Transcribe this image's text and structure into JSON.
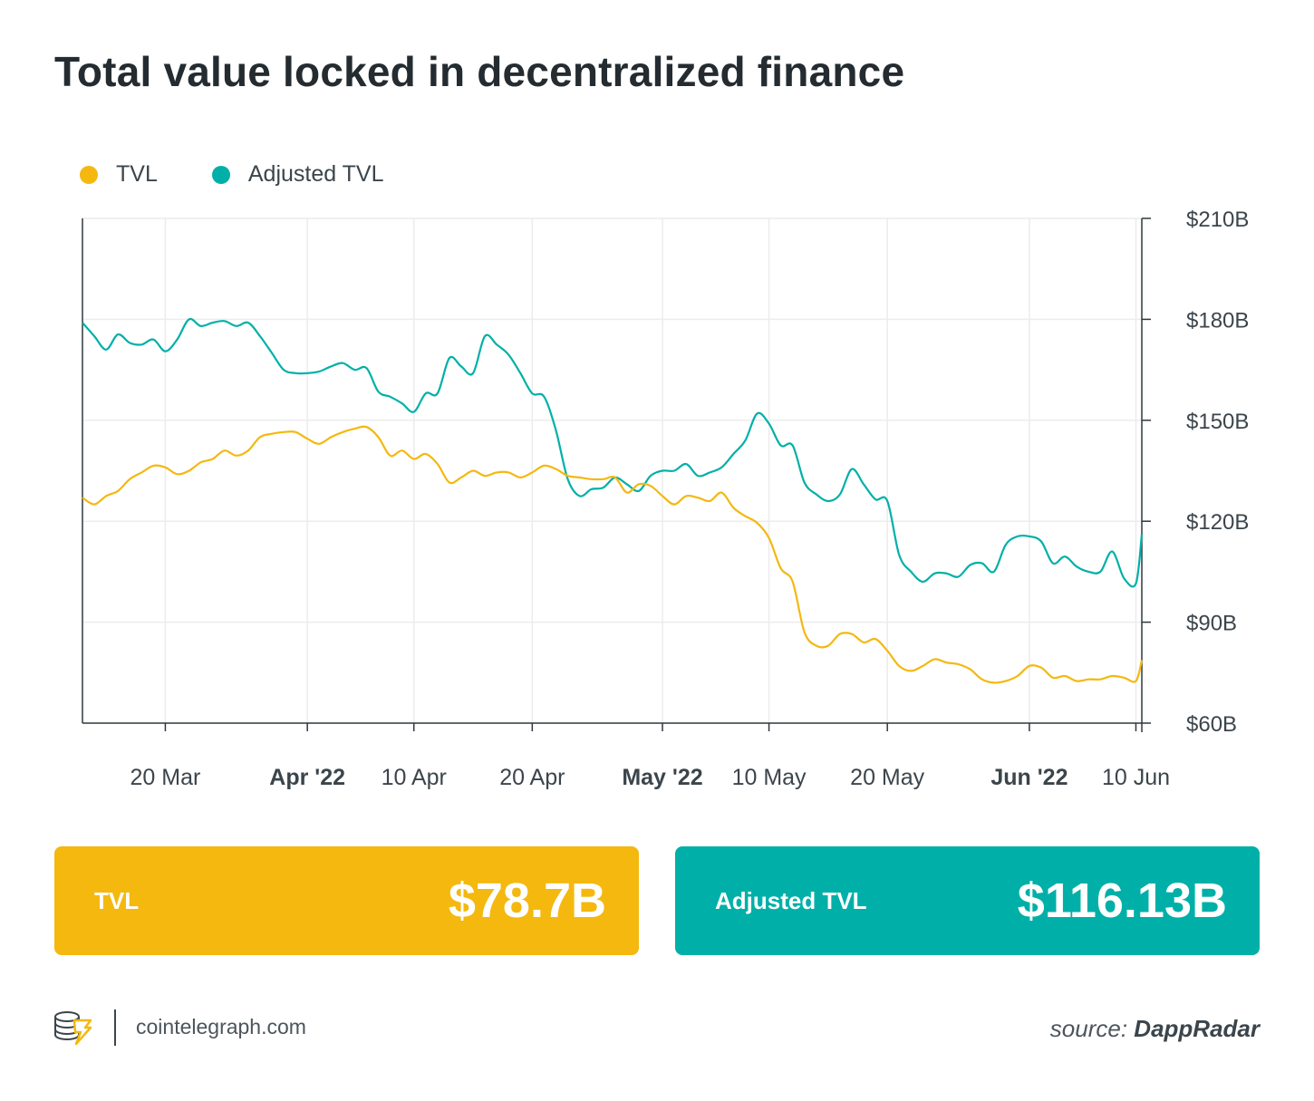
{
  "title": "Total value locked in decentralized finance",
  "legend": [
    {
      "label": "TVL",
      "color": "#f4b80f"
    },
    {
      "label": "Adjusted TVL",
      "color": "#00b0a8"
    }
  ],
  "cards": {
    "tvl": {
      "label": "TVL",
      "value": "$78.7B",
      "color": "#f4b80f"
    },
    "adjusted": {
      "label": "Adjusted TVL",
      "value": "$116.13B",
      "color": "#00b0a8"
    }
  },
  "footer": {
    "site": "cointelegraph.com",
    "source_prefix": "source:",
    "source_name": "DappRadar",
    "logo_icon": "cointelegraph-coin-icon"
  },
  "chart_data": {
    "type": "line",
    "x_start": "2022-03-13",
    "x_end": "2022-06-10",
    "ylim": [
      60,
      210
    ],
    "y_unit": "billion USD",
    "y_ticks": [
      {
        "value": 60,
        "label": "$60B"
      },
      {
        "value": 90,
        "label": "$90B"
      },
      {
        "value": 120,
        "label": "$120B"
      },
      {
        "value": 150,
        "label": "$150B"
      },
      {
        "value": 180,
        "label": "$180B"
      },
      {
        "value": 210,
        "label": "$210B"
      }
    ],
    "x_ticks": [
      {
        "date": "2022-03-20",
        "label": "20 Mar",
        "bold": false
      },
      {
        "date": "2022-04-01",
        "label": "Apr '22",
        "bold": true
      },
      {
        "date": "2022-04-10",
        "label": "10 Apr",
        "bold": false
      },
      {
        "date": "2022-04-20",
        "label": "20 Apr",
        "bold": false
      },
      {
        "date": "2022-05-01",
        "label": "May '22",
        "bold": true
      },
      {
        "date": "2022-05-10",
        "label": "10 May",
        "bold": false
      },
      {
        "date": "2022-05-20",
        "label": "20 May",
        "bold": false
      },
      {
        "date": "2022-06-01",
        "label": "Jun '22",
        "bold": true
      },
      {
        "date": "2022-06-10",
        "label": "10 Jun",
        "bold": false
      }
    ],
    "grid": true,
    "legend_position": "top-left",
    "series": [
      {
        "name": "TVL",
        "color": "#f4b80f",
        "points": [
          [
            "2022-03-13",
            127
          ],
          [
            "2022-03-14",
            125
          ],
          [
            "2022-03-15",
            127.5
          ],
          [
            "2022-03-16",
            129
          ],
          [
            "2022-03-17",
            132.5
          ],
          [
            "2022-03-18",
            134.5
          ],
          [
            "2022-03-19",
            136.5
          ],
          [
            "2022-03-20",
            136
          ],
          [
            "2022-03-21",
            134
          ],
          [
            "2022-03-22",
            135
          ],
          [
            "2022-03-23",
            137.5
          ],
          [
            "2022-03-24",
            138.5
          ],
          [
            "2022-03-25",
            141
          ],
          [
            "2022-03-26",
            139.5
          ],
          [
            "2022-03-27",
            141
          ],
          [
            "2022-03-28",
            145
          ],
          [
            "2022-03-29",
            146
          ],
          [
            "2022-03-30",
            146.5
          ],
          [
            "2022-03-31",
            146.5
          ],
          [
            "2022-04-01",
            144.5
          ],
          [
            "2022-04-02",
            143
          ],
          [
            "2022-04-03",
            145
          ],
          [
            "2022-04-04",
            146.5
          ],
          [
            "2022-04-05",
            147.5
          ],
          [
            "2022-04-06",
            148
          ],
          [
            "2022-04-07",
            145
          ],
          [
            "2022-04-08",
            139.5
          ],
          [
            "2022-04-09",
            141
          ],
          [
            "2022-04-10",
            138.5
          ],
          [
            "2022-04-11",
            140
          ],
          [
            "2022-04-12",
            137
          ],
          [
            "2022-04-13",
            131.5
          ],
          [
            "2022-04-14",
            133
          ],
          [
            "2022-04-15",
            135
          ],
          [
            "2022-04-16",
            133.5
          ],
          [
            "2022-04-17",
            134.5
          ],
          [
            "2022-04-18",
            134.5
          ],
          [
            "2022-04-19",
            133
          ],
          [
            "2022-04-20",
            134.5
          ],
          [
            "2022-04-21",
            136.5
          ],
          [
            "2022-04-22",
            135.5
          ],
          [
            "2022-04-23",
            133.5
          ],
          [
            "2022-04-24",
            133
          ],
          [
            "2022-04-25",
            132.5
          ],
          [
            "2022-04-26",
            132.5
          ],
          [
            "2022-04-27",
            133
          ],
          [
            "2022-04-28",
            128.5
          ],
          [
            "2022-04-29",
            131
          ],
          [
            "2022-04-30",
            130.5
          ],
          [
            "2022-05-01",
            127.5
          ],
          [
            "2022-05-02",
            125
          ],
          [
            "2022-05-03",
            127.5
          ],
          [
            "2022-05-04",
            127
          ],
          [
            "2022-05-05",
            126
          ],
          [
            "2022-05-06",
            128.5
          ],
          [
            "2022-05-07",
            124
          ],
          [
            "2022-05-08",
            121.5
          ],
          [
            "2022-05-09",
            119.5
          ],
          [
            "2022-05-10",
            115
          ],
          [
            "2022-05-11",
            106
          ],
          [
            "2022-05-12",
            102
          ],
          [
            "2022-05-13",
            87
          ],
          [
            "2022-05-14",
            83
          ],
          [
            "2022-05-15",
            83
          ],
          [
            "2022-05-16",
            86.5
          ],
          [
            "2022-05-17",
            86.5
          ],
          [
            "2022-05-18",
            84
          ],
          [
            "2022-05-19",
            85
          ],
          [
            "2022-05-20",
            81.5
          ],
          [
            "2022-05-21",
            77
          ],
          [
            "2022-05-22",
            75.5
          ],
          [
            "2022-05-23",
            77
          ],
          [
            "2022-05-24",
            79
          ],
          [
            "2022-05-25",
            78
          ],
          [
            "2022-05-26",
            77.5
          ],
          [
            "2022-05-27",
            76
          ],
          [
            "2022-05-28",
            73
          ],
          [
            "2022-05-29",
            72
          ],
          [
            "2022-05-30",
            72.5
          ],
          [
            "2022-05-31",
            74
          ],
          [
            "2022-06-01",
            77
          ],
          [
            "2022-06-02",
            76.5
          ],
          [
            "2022-06-03",
            73.5
          ],
          [
            "2022-06-04",
            74
          ],
          [
            "2022-06-05",
            72.5
          ],
          [
            "2022-06-06",
            73
          ],
          [
            "2022-06-07",
            73
          ],
          [
            "2022-06-08",
            74
          ],
          [
            "2022-06-09",
            73.5
          ],
          [
            "2022-06-10",
            72.5
          ],
          [
            "2022-06-10T12",
            78.7
          ]
        ]
      },
      {
        "name": "Adjusted TVL",
        "color": "#00b0a8",
        "points": [
          [
            "2022-03-13",
            179
          ],
          [
            "2022-03-14",
            175
          ],
          [
            "2022-03-15",
            171
          ],
          [
            "2022-03-16",
            175.5
          ],
          [
            "2022-03-17",
            173
          ],
          [
            "2022-03-18",
            172.5
          ],
          [
            "2022-03-19",
            174
          ],
          [
            "2022-03-20",
            170.5
          ],
          [
            "2022-03-21",
            174
          ],
          [
            "2022-03-22",
            180
          ],
          [
            "2022-03-23",
            178
          ],
          [
            "2022-03-24",
            179
          ],
          [
            "2022-03-25",
            179.5
          ],
          [
            "2022-03-26",
            178
          ],
          [
            "2022-03-27",
            179
          ],
          [
            "2022-03-28",
            175
          ],
          [
            "2022-03-29",
            170
          ],
          [
            "2022-03-30",
            165
          ],
          [
            "2022-03-31",
            164
          ],
          [
            "2022-04-01",
            164
          ],
          [
            "2022-04-02",
            164.5
          ],
          [
            "2022-04-03",
            166
          ],
          [
            "2022-04-04",
            167
          ],
          [
            "2022-04-05",
            165
          ],
          [
            "2022-04-06",
            165.5
          ],
          [
            "2022-04-07",
            158.5
          ],
          [
            "2022-04-08",
            157
          ],
          [
            "2022-04-09",
            155
          ],
          [
            "2022-04-10",
            152.5
          ],
          [
            "2022-04-11",
            158
          ],
          [
            "2022-04-12",
            158
          ],
          [
            "2022-04-13",
            168.5
          ],
          [
            "2022-04-14",
            166
          ],
          [
            "2022-04-15",
            164
          ],
          [
            "2022-04-16",
            175
          ],
          [
            "2022-04-17",
            172.5
          ],
          [
            "2022-04-18",
            169.5
          ],
          [
            "2022-04-19",
            164
          ],
          [
            "2022-04-20",
            158
          ],
          [
            "2022-04-21",
            157
          ],
          [
            "2022-04-22",
            147
          ],
          [
            "2022-04-23",
            132.5
          ],
          [
            "2022-04-24",
            127.5
          ],
          [
            "2022-04-25",
            129.5
          ],
          [
            "2022-04-26",
            130
          ],
          [
            "2022-04-27",
            133
          ],
          [
            "2022-04-28",
            131
          ],
          [
            "2022-04-29",
            129
          ],
          [
            "2022-04-30",
            133.5
          ],
          [
            "2022-05-01",
            135
          ],
          [
            "2022-05-02",
            135
          ],
          [
            "2022-05-03",
            137
          ],
          [
            "2022-05-04",
            133.5
          ],
          [
            "2022-05-05",
            134.5
          ],
          [
            "2022-05-06",
            136
          ],
          [
            "2022-05-07",
            140
          ],
          [
            "2022-05-08",
            144
          ],
          [
            "2022-05-09",
            152
          ],
          [
            "2022-05-10",
            149
          ],
          [
            "2022-05-11",
            142.5
          ],
          [
            "2022-05-12",
            142.5
          ],
          [
            "2022-05-13",
            131.5
          ],
          [
            "2022-05-14",
            128
          ],
          [
            "2022-05-15",
            126
          ],
          [
            "2022-05-16",
            128
          ],
          [
            "2022-05-17",
            135.5
          ],
          [
            "2022-05-18",
            131
          ],
          [
            "2022-05-19",
            126.5
          ],
          [
            "2022-05-20",
            126
          ],
          [
            "2022-05-21",
            110
          ],
          [
            "2022-05-22",
            105
          ],
          [
            "2022-05-23",
            102
          ],
          [
            "2022-05-24",
            104.5
          ],
          [
            "2022-05-25",
            104.5
          ],
          [
            "2022-05-26",
            103.5
          ],
          [
            "2022-05-27",
            107
          ],
          [
            "2022-05-28",
            107.5
          ],
          [
            "2022-05-29",
            105
          ],
          [
            "2022-05-30",
            113
          ],
          [
            "2022-05-31",
            115.5
          ],
          [
            "2022-06-01",
            115.5
          ],
          [
            "2022-06-02",
            114
          ],
          [
            "2022-06-03",
            107.5
          ],
          [
            "2022-06-04",
            109.5
          ],
          [
            "2022-06-05",
            106.5
          ],
          [
            "2022-06-06",
            105
          ],
          [
            "2022-06-07",
            105
          ],
          [
            "2022-06-08",
            111
          ],
          [
            "2022-06-09",
            103
          ],
          [
            "2022-06-10",
            101.5
          ],
          [
            "2022-06-10T12",
            116.13
          ]
        ]
      }
    ]
  }
}
